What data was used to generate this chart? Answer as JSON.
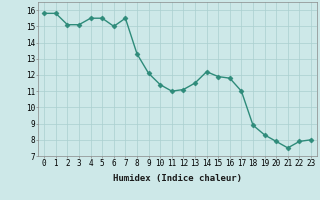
{
  "xlabel": "Humidex (Indice chaleur)",
  "x": [
    0,
    1,
    2,
    3,
    4,
    5,
    6,
    7,
    8,
    9,
    10,
    11,
    12,
    13,
    14,
    15,
    16,
    17,
    18,
    19,
    20,
    21,
    22,
    23
  ],
  "y": [
    15.8,
    15.8,
    15.1,
    15.1,
    15.5,
    15.5,
    15.0,
    15.5,
    13.3,
    12.1,
    11.4,
    11.0,
    11.1,
    11.5,
    12.2,
    11.9,
    11.8,
    11.0,
    8.9,
    8.3,
    7.9,
    7.5,
    7.9,
    8.0
  ],
  "line_color": "#2e8b7a",
  "marker": "D",
  "marker_size": 2.5,
  "background_color": "#cde8e8",
  "grid_color": "#aacfcf",
  "ylim": [
    7,
    16.5
  ],
  "xlim": [
    -0.5,
    23.5
  ],
  "yticks": [
    7,
    8,
    9,
    10,
    11,
    12,
    13,
    14,
    15,
    16
  ],
  "xticks": [
    0,
    1,
    2,
    3,
    4,
    5,
    6,
    7,
    8,
    9,
    10,
    11,
    12,
    13,
    14,
    15,
    16,
    17,
    18,
    19,
    20,
    21,
    22,
    23
  ],
  "xlabel_fontsize": 6.5,
  "tick_fontsize": 5.5,
  "line_width": 1.0
}
